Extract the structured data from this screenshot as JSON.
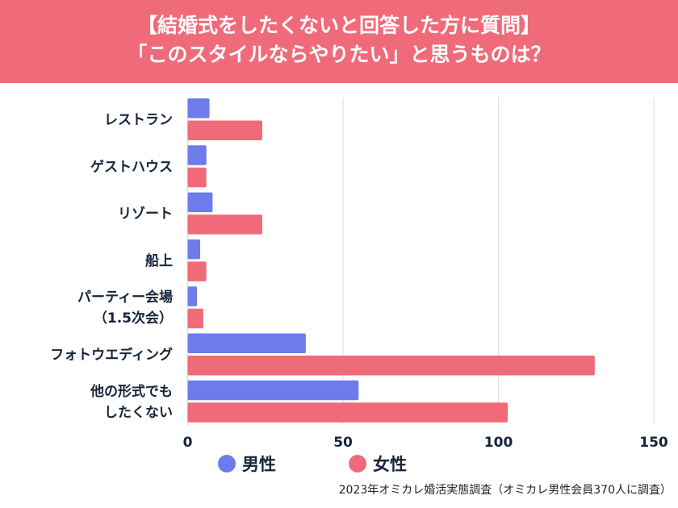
{
  "header": {
    "line1": "【結婚式をしたくないと回答した方に質問】",
    "line2": "「このスタイルならやりたい」と思うものは？"
  },
  "chart_data": {
    "type": "bar",
    "orientation": "horizontal",
    "categories": [
      [
        "レストラン"
      ],
      [
        "ゲストハウス"
      ],
      [
        "リゾート"
      ],
      [
        "船上"
      ],
      [
        "パーティー会場",
        "（1.5次会）"
      ],
      [
        "フォトウエディング"
      ],
      [
        "他の形式でも",
        "したくない"
      ]
    ],
    "series": [
      {
        "name": "男性",
        "color": "#6e7bea",
        "values": [
          7,
          6,
          8,
          4,
          3,
          38,
          55
        ]
      },
      {
        "name": "女性",
        "color": "#ef6b7a",
        "values": [
          24,
          6,
          24,
          6,
          5,
          131,
          103
        ]
      }
    ],
    "xlim": [
      0,
      150
    ],
    "xticks": [
      "0",
      "50",
      "100",
      "150"
    ],
    "grid": true,
    "legend": "bottom"
  },
  "source": "2023年オミカレ婚活実態調査（オミカレ男性会員370人に調査）"
}
